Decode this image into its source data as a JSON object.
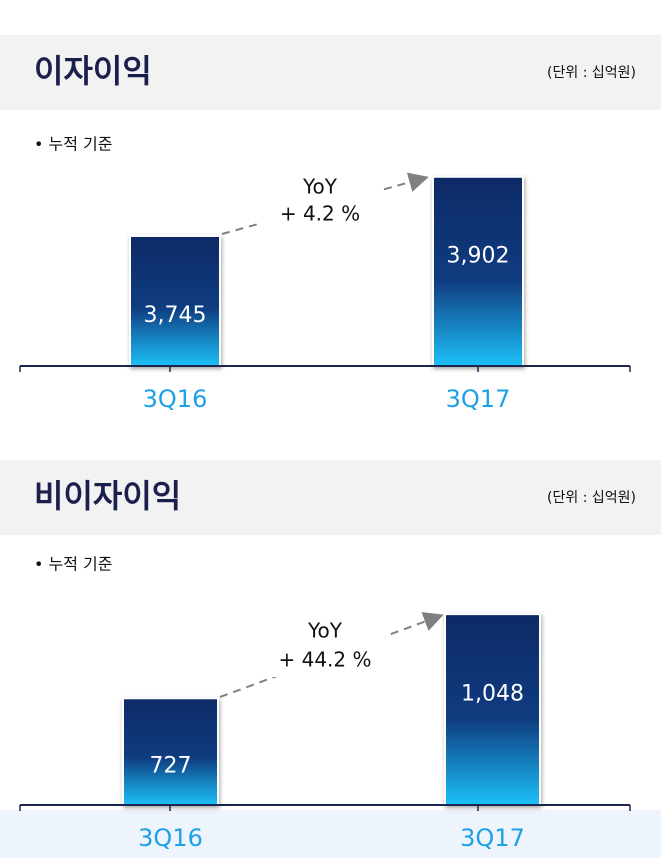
{
  "chart_data": [
    {
      "type": "bar",
      "title": "이자이익",
      "unit": "(단위 : 십억원)",
      "note": "• 누적 기준",
      "annotation": [
        "YoY",
        "+ 4.2 %"
      ],
      "categories": [
        "3Q16",
        "3Q17"
      ],
      "values": [
        3745,
        3902
      ],
      "value_labels": [
        "3,745",
        "3,902"
      ],
      "ylim": [
        3400,
        3920
      ],
      "color": "#0d2a66"
    },
    {
      "type": "bar",
      "title": "비이자이익",
      "unit": "(단위 : 십억원)",
      "note": "• 누적 기준",
      "annotation": [
        "YoY",
        "+ 44.2 %"
      ],
      "categories": [
        "3Q16",
        "3Q17"
      ],
      "values": [
        727,
        1048
      ],
      "value_labels": [
        "727",
        "1,048"
      ],
      "ylim": [
        320,
        1060
      ],
      "color": "#0d2a66"
    }
  ]
}
